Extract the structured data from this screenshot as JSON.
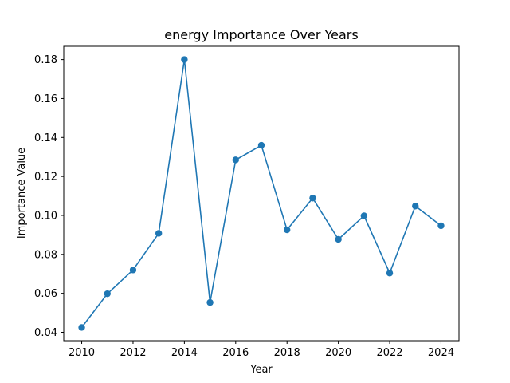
{
  "chart_data": {
    "type": "line",
    "title": "energy Importance Over Years",
    "xlabel": "Year",
    "ylabel": "Importance Value",
    "x": [
      2010,
      2011,
      2012,
      2013,
      2014,
      2015,
      2016,
      2017,
      2018,
      2019,
      2020,
      2021,
      2022,
      2023,
      2024
    ],
    "series": [
      {
        "values": [
          0.0425,
          0.0598,
          0.072,
          0.0908,
          0.18,
          0.0553,
          0.1285,
          0.136,
          0.0926,
          0.1089,
          0.0877,
          0.0998,
          0.0704,
          0.1048,
          0.0947
        ],
        "color": "#1f77b4",
        "marker": "circle"
      }
    ],
    "xticks": [
      2010,
      2012,
      2014,
      2016,
      2018,
      2020,
      2022,
      2024
    ],
    "yticks": [
      0.04,
      0.06,
      0.08,
      0.1,
      0.12,
      0.14,
      0.16,
      0.18
    ],
    "ytick_labels": [
      "0.04",
      "0.06",
      "0.08",
      "0.10",
      "0.12",
      "0.14",
      "0.16",
      "0.18"
    ],
    "xlim": [
      2009.3,
      2024.7
    ],
    "ylim": [
      0.0357,
      0.1868
    ],
    "grid": false,
    "legend": "none"
  }
}
